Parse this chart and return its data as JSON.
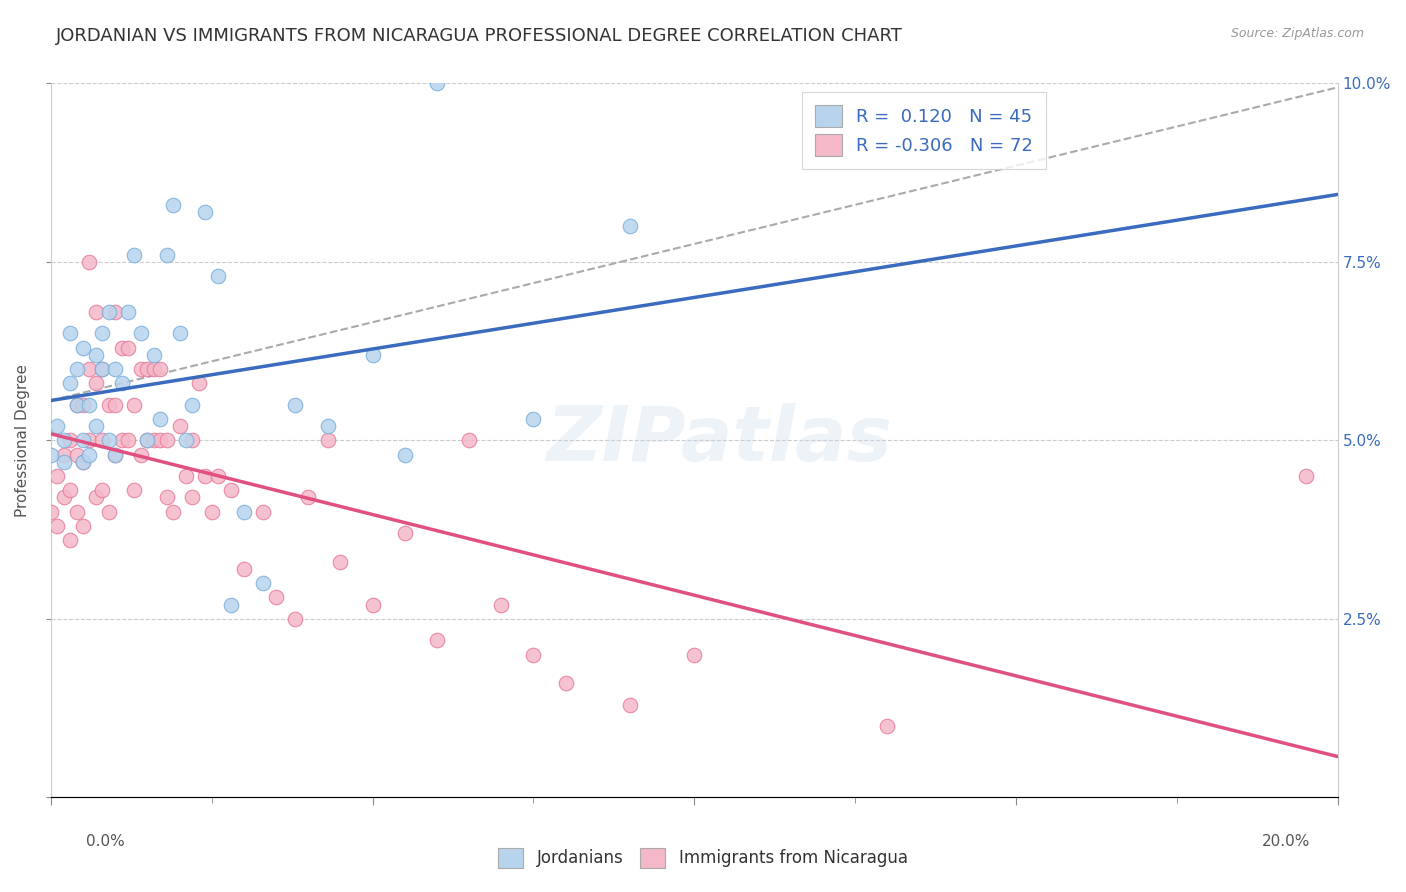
{
  "title": "JORDANIAN VS IMMIGRANTS FROM NICARAGUA PROFESSIONAL DEGREE CORRELATION CHART",
  "source": "Source: ZipAtlas.com",
  "ylabel": "Professional Degree",
  "watermark": "ZIPatlas",
  "jordanians": {
    "label": "Jordanians",
    "color": "#b8d4ed",
    "edge_color": "#7aaedb",
    "R": 0.12,
    "N": 45,
    "x": [
      0.0,
      0.001,
      0.002,
      0.002,
      0.003,
      0.003,
      0.004,
      0.004,
      0.005,
      0.005,
      0.005,
      0.006,
      0.006,
      0.007,
      0.007,
      0.008,
      0.008,
      0.009,
      0.009,
      0.01,
      0.01,
      0.011,
      0.012,
      0.013,
      0.014,
      0.015,
      0.016,
      0.017,
      0.018,
      0.019,
      0.02,
      0.021,
      0.022,
      0.024,
      0.026,
      0.028,
      0.03,
      0.033,
      0.038,
      0.043,
      0.05,
      0.055,
      0.06,
      0.075,
      0.09
    ],
    "y": [
      0.048,
      0.052,
      0.05,
      0.047,
      0.065,
      0.058,
      0.06,
      0.055,
      0.05,
      0.047,
      0.063,
      0.055,
      0.048,
      0.062,
      0.052,
      0.065,
      0.06,
      0.068,
      0.05,
      0.06,
      0.048,
      0.058,
      0.068,
      0.076,
      0.065,
      0.05,
      0.062,
      0.053,
      0.076,
      0.083,
      0.065,
      0.05,
      0.055,
      0.082,
      0.073,
      0.027,
      0.04,
      0.03,
      0.055,
      0.052,
      0.062,
      0.048,
      0.1,
      0.053,
      0.08
    ]
  },
  "nicaragua": {
    "label": "Immigrants from Nicaragua",
    "color": "#f4b8c8",
    "edge_color": "#e87a9a",
    "R": -0.306,
    "N": 72,
    "x": [
      0.0,
      0.001,
      0.001,
      0.002,
      0.002,
      0.003,
      0.003,
      0.003,
      0.004,
      0.004,
      0.004,
      0.005,
      0.005,
      0.005,
      0.006,
      0.006,
      0.006,
      0.007,
      0.007,
      0.007,
      0.008,
      0.008,
      0.008,
      0.009,
      0.009,
      0.01,
      0.01,
      0.01,
      0.011,
      0.011,
      0.012,
      0.012,
      0.013,
      0.013,
      0.014,
      0.014,
      0.015,
      0.015,
      0.016,
      0.016,
      0.017,
      0.017,
      0.018,
      0.018,
      0.019,
      0.02,
      0.021,
      0.022,
      0.022,
      0.023,
      0.024,
      0.025,
      0.026,
      0.028,
      0.03,
      0.033,
      0.035,
      0.038,
      0.04,
      0.043,
      0.045,
      0.05,
      0.055,
      0.06,
      0.065,
      0.07,
      0.075,
      0.08,
      0.09,
      0.1,
      0.13,
      0.195
    ],
    "y": [
      0.04,
      0.045,
      0.038,
      0.048,
      0.042,
      0.05,
      0.043,
      0.036,
      0.055,
      0.048,
      0.04,
      0.055,
      0.047,
      0.038,
      0.075,
      0.06,
      0.05,
      0.068,
      0.058,
      0.042,
      0.06,
      0.05,
      0.043,
      0.055,
      0.04,
      0.068,
      0.055,
      0.048,
      0.063,
      0.05,
      0.063,
      0.05,
      0.055,
      0.043,
      0.06,
      0.048,
      0.06,
      0.05,
      0.06,
      0.05,
      0.06,
      0.05,
      0.05,
      0.042,
      0.04,
      0.052,
      0.045,
      0.042,
      0.05,
      0.058,
      0.045,
      0.04,
      0.045,
      0.043,
      0.032,
      0.04,
      0.028,
      0.025,
      0.042,
      0.05,
      0.033,
      0.027,
      0.037,
      0.022,
      0.05,
      0.027,
      0.02,
      0.016,
      0.013,
      0.02,
      0.01,
      0.045
    ]
  },
  "xlim": [
    0.0,
    0.2
  ],
  "ylim": [
    0.0,
    0.1
  ],
  "xticks_major": [
    0.0,
    0.05,
    0.1,
    0.15,
    0.2
  ],
  "xticks_minor": [
    0.0,
    0.025,
    0.05,
    0.075,
    0.1,
    0.125,
    0.15,
    0.175,
    0.2
  ],
  "yticks": [
    0.0,
    0.025,
    0.05,
    0.075,
    0.1
  ],
  "jordanians_line_color": "#3a6bbf",
  "nicaragua_line_color": "#e05080",
  "dashed_line_color": "#aaaaaa",
  "legend_text_color": "#3a6bbf",
  "title_fontsize": 13,
  "label_fontsize": 11,
  "tick_fontsize": 11,
  "background_color": "#ffffff",
  "grid_color": "#cccccc"
}
